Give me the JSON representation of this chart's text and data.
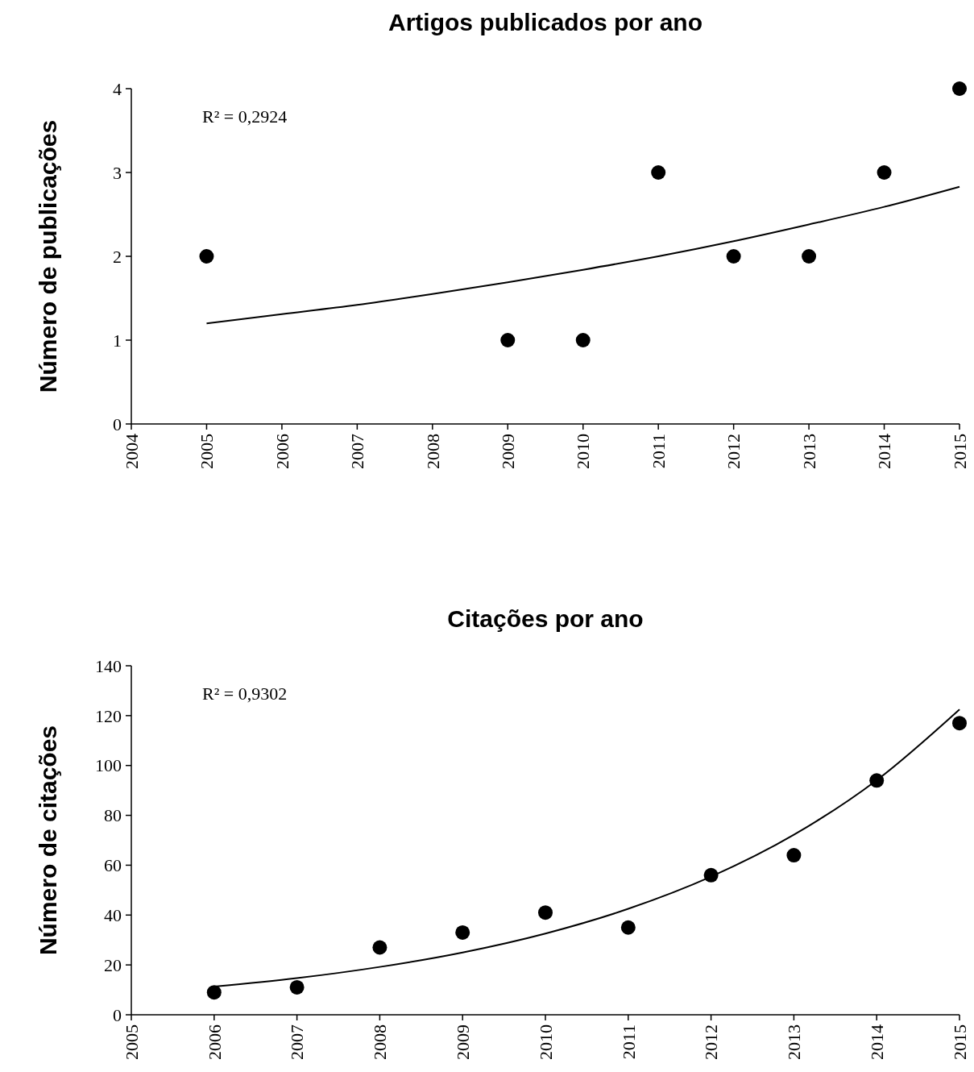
{
  "chart_data": [
    {
      "type": "scatter",
      "title": "Artigos publicados por ano",
      "ylabel": "Número de publicações",
      "annotations": [
        "R² = 0,2924"
      ],
      "xlim": [
        2004,
        2015
      ],
      "xticks": [
        2004,
        2005,
        2006,
        2007,
        2008,
        2009,
        2010,
        2011,
        2012,
        2013,
        2014,
        2015
      ],
      "ylim": [
        0,
        4
      ],
      "yticks": [
        0,
        1,
        2,
        3,
        4
      ],
      "grid": false,
      "series": [
        {
          "type": "scatter",
          "color": "#000000",
          "marker": "circle",
          "x": [
            2005,
            2009,
            2010,
            2011,
            2012,
            2013,
            2014,
            2015
          ],
          "values": [
            2,
            1,
            1,
            3,
            2,
            2,
            3,
            4
          ]
        },
        {
          "type": "line",
          "color": "#000000",
          "marker": "none",
          "line_style": "solid",
          "x": [
            2005,
            2006,
            2007,
            2008,
            2009,
            2010,
            2011,
            2012,
            2013,
            2014,
            2015
          ],
          "values": [
            1.2,
            1.31,
            1.42,
            1.55,
            1.69,
            1.84,
            2.0,
            2.18,
            2.38,
            2.59,
            2.83
          ]
        }
      ]
    },
    {
      "type": "scatter",
      "title": "Citações por ano",
      "ylabel": "Número de citações",
      "annotations": [
        "R² = 0,9302"
      ],
      "xlim": [
        2005,
        2015
      ],
      "xticks": [
        2005,
        2006,
        2007,
        2008,
        2009,
        2010,
        2011,
        2012,
        2013,
        2014,
        2015
      ],
      "ylim": [
        0,
        140
      ],
      "yticks": [
        0,
        20,
        40,
        60,
        80,
        100,
        120,
        140
      ],
      "grid": false,
      "series": [
        {
          "type": "scatter",
          "color": "#000000",
          "marker": "circle",
          "x": [
            2006,
            2007,
            2008,
            2009,
            2010,
            2011,
            2012,
            2013,
            2014,
            2015
          ],
          "values": [
            9,
            11,
            27,
            33,
            41,
            35,
            56,
            64,
            94,
            117
          ]
        },
        {
          "type": "line",
          "color": "#000000",
          "marker": "none",
          "line_style": "solid",
          "x": [
            2006,
            2007,
            2008,
            2009,
            2010,
            2011,
            2012,
            2013,
            2014,
            2015
          ],
          "values": [
            11.3,
            14.7,
            19.2,
            25.0,
            32.6,
            42.5,
            55.4,
            72.2,
            94.1,
            122.5
          ]
        }
      ]
    }
  ]
}
